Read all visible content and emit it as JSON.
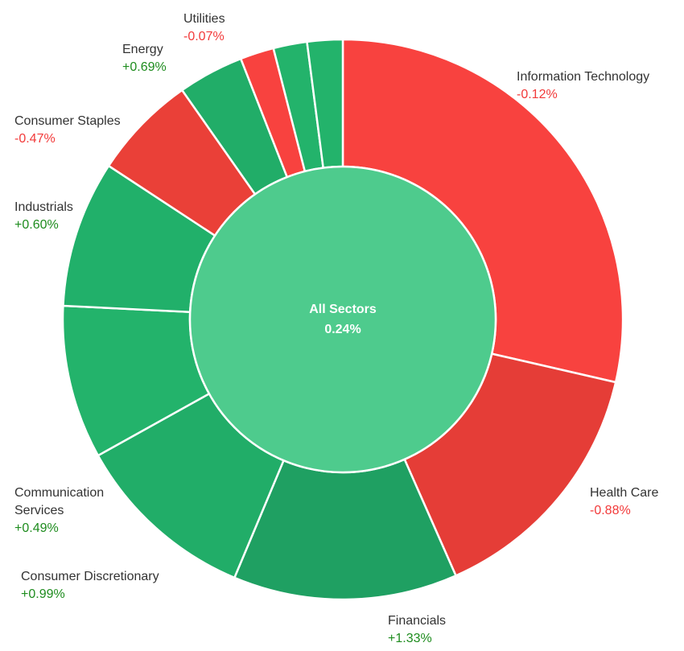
{
  "chart_data": {
    "type": "pie",
    "subtype": "sunburst-donut",
    "center": {
      "label": "All Sectors",
      "value": "0.24%",
      "color": "#4ecb8d"
    },
    "slices": [
      {
        "name_lines": [
          "Information Technology"
        ],
        "change": "-0.12%",
        "weight": 29.4,
        "color": "#f8423f"
      },
      {
        "name_lines": [
          "Health Care"
        ],
        "change": "-0.88%",
        "weight": 15.2,
        "color": "#e53d37"
      },
      {
        "name_lines": [
          "Financials"
        ],
        "change": "+1.33%",
        "weight": 13.3,
        "color": "#1fa062"
      },
      {
        "name_lines": [
          "Consumer Discretionary"
        ],
        "change": "+0.99%",
        "weight": 10.9,
        "color": "#21ad68"
      },
      {
        "name_lines": [
          "Communication",
          "Services"
        ],
        "change": "+0.49%",
        "weight": 9.1,
        "color": "#23b36b"
      },
      {
        "name_lines": [
          "Industrials"
        ],
        "change": "+0.60%",
        "weight": 8.7,
        "color": "#21b06a"
      },
      {
        "name_lines": [
          "Consumer Staples"
        ],
        "change": "-0.47%",
        "weight": 6.2,
        "color": "#ea4038"
      },
      {
        "name_lines": [
          "Energy"
        ],
        "change": "+0.69%",
        "weight": 3.9,
        "color": "#21ad68"
      },
      {
        "name_lines": [],
        "change": "",
        "weight": 2.0,
        "color": "#f8423f"
      },
      {
        "name_lines": [],
        "change": "",
        "weight": 2.0,
        "color": "#23b36b"
      },
      {
        "name_lines": [
          "Utilities"
        ],
        "change": "-0.07%",
        "weight": 2.1,
        "color": "#23b36b"
      }
    ],
    "colors": {
      "positive_text": "#1e8c1e",
      "negative_text": "#f23a3a"
    }
  }
}
